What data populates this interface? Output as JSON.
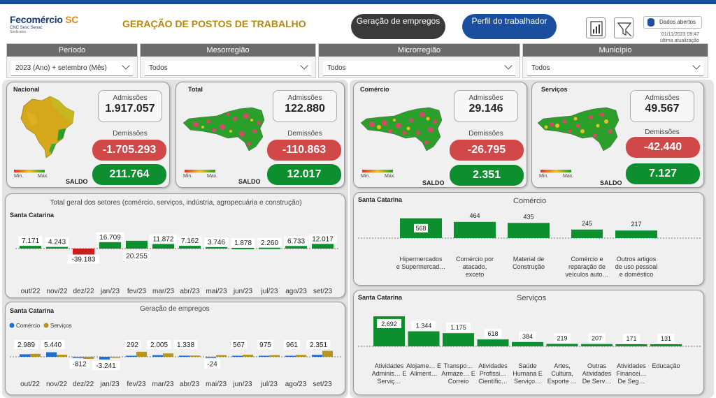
{
  "header": {
    "logo_name": "Fecomércio",
    "logo_sc": "SC",
    "logo_sub": "CNC Sesc Senac",
    "logo_sub2": "Sindicatos",
    "title": "GERAÇÃO DE POSTOS DE TRABALHO",
    "tab_geracao": "Geração de empregos",
    "tab_perfil": "Perfil do trabalhador",
    "dados_abertos": "Dados abertos",
    "update_date": "01/11/2023 09:47",
    "update_label": "última atualização"
  },
  "filters": [
    {
      "label": "Período",
      "value": "2023 (Ano) + setembro (Mês)"
    },
    {
      "label": "Mesorregião",
      "value": "Todos"
    },
    {
      "label": "Microrregião",
      "value": "Todos"
    },
    {
      "label": "Município",
      "value": "Todos"
    }
  ],
  "kpis": {
    "adm_label": "Admissões",
    "dem_label": "Demissões",
    "saldo_label": "SALDO",
    "min_label": "Min.",
    "max_label": "Max.",
    "nacional": {
      "title": "Nacional",
      "admissoes": "1.917.057",
      "demissoes": "-1.705.293",
      "saldo": "211.764"
    },
    "total": {
      "title": "Total",
      "admissoes": "122.880",
      "demissoes": "-110.863",
      "saldo": "12.017"
    },
    "comercio": {
      "title": "Comércio",
      "admissoes": "29.146",
      "demissoes": "-26.795",
      "saldo": "2.351"
    },
    "servicos": {
      "title": "Serviços",
      "admissoes": "49.567",
      "demissoes": "-42.440",
      "saldo": "7.127"
    }
  },
  "colors": {
    "green": "#0d8f2f",
    "red": "#c81e1e",
    "blue": "#1f6fd1",
    "gold": "#b8941a",
    "header_blue": "#1a4fa0"
  },
  "chart_total": {
    "region": "Santa Catarina",
    "title": "Total geral dos setores (comércio, serviços, indústria, agropecuária e construção)",
    "chart_data": {
      "type": "bar",
      "categories": [
        "out/22",
        "nov/22",
        "dez/22",
        "jan/23",
        "fev/23",
        "mar/23",
        "abr/23",
        "mai/23",
        "jun/23",
        "jul/23",
        "ago/23",
        "set/23"
      ],
      "values": [
        7171,
        4243,
        -39183,
        16709,
        20255,
        11872,
        7162,
        3746,
        1878,
        2260,
        6733,
        12017
      ],
      "labels": [
        "7.171",
        "4.243",
        "-39.183",
        "16.709",
        "20.255",
        "11.872",
        "7.162",
        "3.746",
        "1.878",
        "2.260",
        "6.733",
        "12.017"
      ]
    }
  },
  "chart_geracao": {
    "region": "Santa Catarina",
    "title": "Geração de empregos",
    "chart_data": {
      "type": "bar",
      "categories": [
        "out/22",
        "nov/22",
        "dez/22",
        "jan/23",
        "fev/23",
        "mar/23",
        "abr/23",
        "mai/23",
        "jun/23",
        "jul/23",
        "ago/23",
        "set/23"
      ],
      "series": [
        {
          "name": "Comércio",
          "values": [
            2989,
            5440,
            -812,
            -3241,
            292,
            2005,
            1338,
            -24,
            567,
            975,
            961,
            2351
          ],
          "labels": [
            "2.989",
            "5.440",
            "-812",
            "-3.241",
            "292",
            "2.005",
            "1.338",
            "-24",
            "567",
            "975",
            "961",
            "2.351"
          ]
        },
        {
          "name": "Serviços",
          "values": [
            3500,
            2500,
            -2500,
            -1200,
            6000,
            4000,
            1500,
            2000,
            2500,
            2000,
            2300,
            7127
          ]
        }
      ]
    }
  },
  "chart_comercio": {
    "region": "Santa Catarina",
    "title": "Comércio",
    "chart_data": {
      "type": "bar",
      "categories": [
        "Hipermercados e Supermercad…",
        "Comércio por atacado, exceto veículos auto…",
        "Material de Construção",
        "Comércio e reparação de veículos auto…",
        "Outros artigos de uso pessoal e doméstico"
      ],
      "values": [
        568,
        464,
        435,
        245,
        217
      ],
      "labels": [
        "568",
        "464",
        "435",
        "245",
        "217"
      ]
    }
  },
  "chart_servicos": {
    "region": "Santa Catarina",
    "title": "Serviços",
    "chart_data": {
      "type": "bar",
      "categories": [
        "Atividades Adminis… E Serviç…",
        "Alojame… E Aliment…",
        "Transpo… Armaze… E Correio",
        "Atividades Profissi… Científic…",
        "Saúde Humana E Serviço…",
        "Artes, Cultura, Esporte …",
        "Outras Atividades De Serv…",
        "Atividades Financei… De Seg…",
        "Educação"
      ],
      "values": [
        2692,
        1344,
        1175,
        618,
        384,
        219,
        207,
        171,
        131
      ],
      "labels": [
        "2.692",
        "1.344",
        "1.175",
        "618",
        "384",
        "219",
        "207",
        "171",
        "131"
      ]
    }
  }
}
